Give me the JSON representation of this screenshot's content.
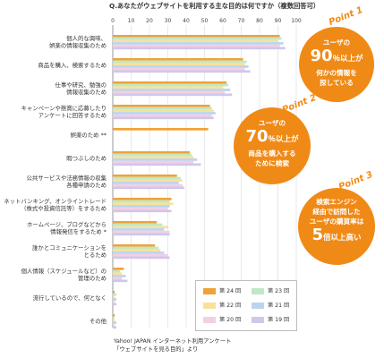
{
  "chart_data": {
    "type": "bar",
    "title": "Q.あなたがウェブサイトを利用する主な目的は何ですか（複数回答可）",
    "categories": [
      "個人的な興味、\n娯楽の情報収集のため",
      "商品を購入、検索するため",
      "仕事や研究、勉強の\n情報収集のため",
      "キャンペーンや懸賞に応募したり\nアンケートに回答するため",
      "娯楽のため **",
      "暇つぶしのため",
      "公共サービスや法務情報の収集\n各種申請のため",
      "ネットバンキング、オンライントレード\n（株式や投資信託等）をするため",
      "ホームページ、ブログなどから\n情報発信をするため *",
      "誰かとコミュニケーションを\nとるため",
      "個人情報（スケジュールなど）の\n管理のため",
      "流行しているので、何となく",
      "その他"
    ],
    "x_ticks": [
      0,
      10,
      20,
      30,
      40,
      50,
      60,
      70,
      80,
      90,
      100
    ],
    "xlim": [
      0,
      100
    ],
    "series": [
      {
        "name": "第 24 回",
        "color": "#f0a238",
        "values": [
          91,
          71,
          62,
          53,
          52,
          42,
          35,
          32,
          24,
          23,
          6,
          1,
          1
        ]
      },
      {
        "name": "第 23 回",
        "color": "#bfe8c6",
        "values": [
          92,
          73,
          63,
          54,
          0,
          43,
          37,
          31,
          27,
          25,
          4,
          2,
          1
        ]
      },
      {
        "name": "第 22 回",
        "color": "#f7e29a",
        "values": [
          90,
          72,
          60,
          55,
          0,
          44,
          38,
          33,
          30,
          26,
          5,
          1,
          1
        ]
      },
      {
        "name": "第 21 回",
        "color": "#bcd4ef",
        "values": [
          93,
          74,
          64,
          56,
          0,
          46,
          36,
          31,
          28,
          28,
          7,
          2,
          2
        ]
      },
      {
        "name": "第 20 回",
        "color": "#f3cfe4",
        "values": [
          91,
          72,
          61,
          54,
          0,
          44,
          38,
          30,
          31,
          30,
          5,
          1,
          1
        ]
      },
      {
        "name": "第 19 回",
        "color": "#d2c6ea",
        "values": [
          94,
          75,
          65,
          55,
          0,
          48,
          39,
          32,
          31,
          31,
          8,
          2,
          2
        ]
      }
    ]
  },
  "source": [
    "Yahoo! JAPAN インターネット利用アンケート",
    "「ウェブサイトを見る目的」より"
  ],
  "points": [
    {
      "tag": "Point 1",
      "line1": "ユーザの",
      "big": "90",
      "pct": "％以上が",
      "line3": "何かの情報を",
      "line4": "探している"
    },
    {
      "tag": "Point 2",
      "line1": "ユーザの",
      "big": "70",
      "pct": "％以上が",
      "line3": "商品を購入する",
      "line4": "ために検索"
    },
    {
      "tag": "Point 3",
      "line1": "検索エンジン",
      "line2": "経由で訪問した",
      "line3": "ユーザの購買率は",
      "big": "5",
      "pct": "倍以上高い"
    }
  ],
  "colors": {
    "accent": "#f08a16",
    "axis": "#999999",
    "grid": "#d9d9d9"
  }
}
